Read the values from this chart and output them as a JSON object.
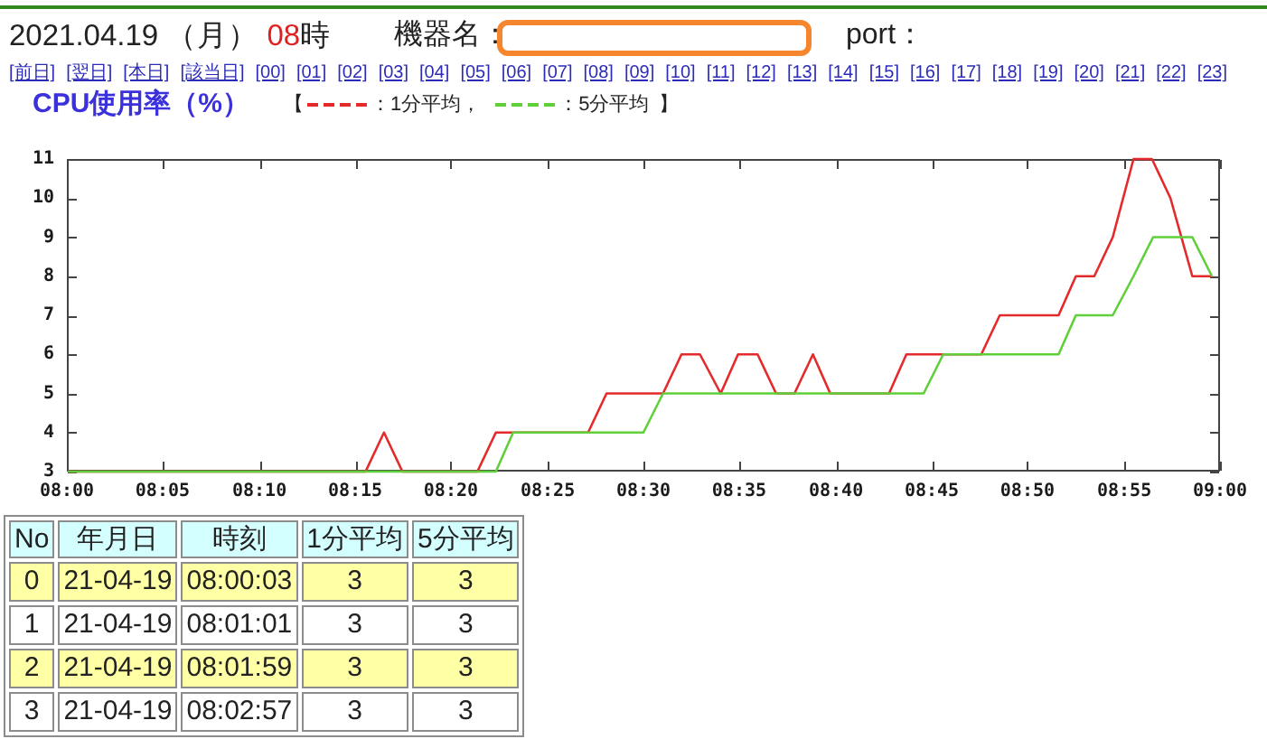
{
  "chart_data": [
    {
      "type": "line",
      "title": "CPU使用率（%）",
      "annotations": [
        "2021.04.19 （月） 08時",
        "機器名：",
        "port：",
        "[前日] [翌日] [本日] [該当日] [00] [01] [02] [03] [04] [05] [06] [07] [08] [09] [10] [11] [12] [13] [14] [15] [16] [17] [18] [19] [20] [21] [22] [23]",
        "【",
        "：",
        "，",
        "】"
      ],
      "series": [
        {
          "name": "1分平均",
          "color": "#e42a2a",
          "x": [
            8.001,
            8.259,
            8.275,
            8.291,
            8.356,
            8.372,
            8.452,
            8.468,
            8.517,
            8.533,
            8.549,
            8.567,
            8.582,
            8.599,
            8.615,
            8.631,
            8.647,
            8.662,
            8.713,
            8.728,
            8.793,
            8.809,
            8.86,
            8.875,
            8.891,
            8.907,
            8.925,
            8.941,
            8.957,
            8.976,
            8.993
          ],
          "values": [
            3,
            3,
            4,
            3,
            3,
            4,
            4,
            5,
            5,
            6,
            6,
            5,
            6,
            6,
            5,
            5,
            6,
            5,
            5,
            6,
            6,
            7,
            7,
            8,
            8,
            9,
            11,
            11,
            10,
            8,
            8
          ]
        },
        {
          "name": "5分平均",
          "color": "#5fd03a",
          "x": [
            8.001,
            8.372,
            8.387,
            8.5,
            8.517,
            8.743,
            8.76,
            8.86,
            8.875,
            8.907,
            8.925,
            8.942,
            8.976,
            8.993
          ],
          "values": [
            3,
            3,
            4,
            4,
            5,
            5,
            6,
            6,
            7,
            7,
            8,
            9,
            9,
            8
          ]
        }
      ],
      "xlim": [
        8,
        9
      ],
      "xticks": [
        {
          "value": 8,
          "label": "08:00"
        },
        {
          "value": 8.083,
          "label": "08:05"
        },
        {
          "value": 8.167,
          "label": "08:10"
        },
        {
          "value": 8.25,
          "label": "08:15"
        },
        {
          "value": 8.333,
          "label": "08:20"
        },
        {
          "value": 8.417,
          "label": "08:25"
        },
        {
          "value": 8.5,
          "label": "08:30"
        },
        {
          "value": 8.583,
          "label": "08:35"
        },
        {
          "value": 8.667,
          "label": "08:40"
        },
        {
          "value": 8.75,
          "label": "08:45"
        },
        {
          "value": 8.833,
          "label": "08:50"
        },
        {
          "value": 8.917,
          "label": "08:55"
        },
        {
          "value": 9,
          "label": "09:00"
        }
      ],
      "ylim": [
        3,
        11
      ],
      "yticks": [
        3,
        4,
        5,
        6,
        7,
        8,
        9,
        10,
        11
      ],
      "legend": "top"
    },
    {
      "type": "heatmap",
      "ylabel": "No",
      "categories": [
        "年月日",
        "時刻",
        "1分平均",
        "5分平均"
      ],
      "y_categories": [
        "0",
        "1",
        "2",
        "3"
      ],
      "cells": [
        [
          null,
          null,
          null,
          null
        ],
        [
          null,
          null,
          null,
          null
        ],
        [
          null,
          null,
          null,
          null
        ],
        [
          null,
          null,
          null,
          null
        ]
      ],
      "cell_labels": [
        [
          "21-04-19",
          "08:00:03",
          "3",
          "3"
        ],
        [
          "21-04-19",
          "08:01:01",
          "3",
          "3"
        ],
        [
          "21-04-19",
          "08:01:59",
          "3",
          "3"
        ],
        [
          "21-04-19",
          "08:02:57",
          "3",
          "3"
        ]
      ]
    }
  ]
}
